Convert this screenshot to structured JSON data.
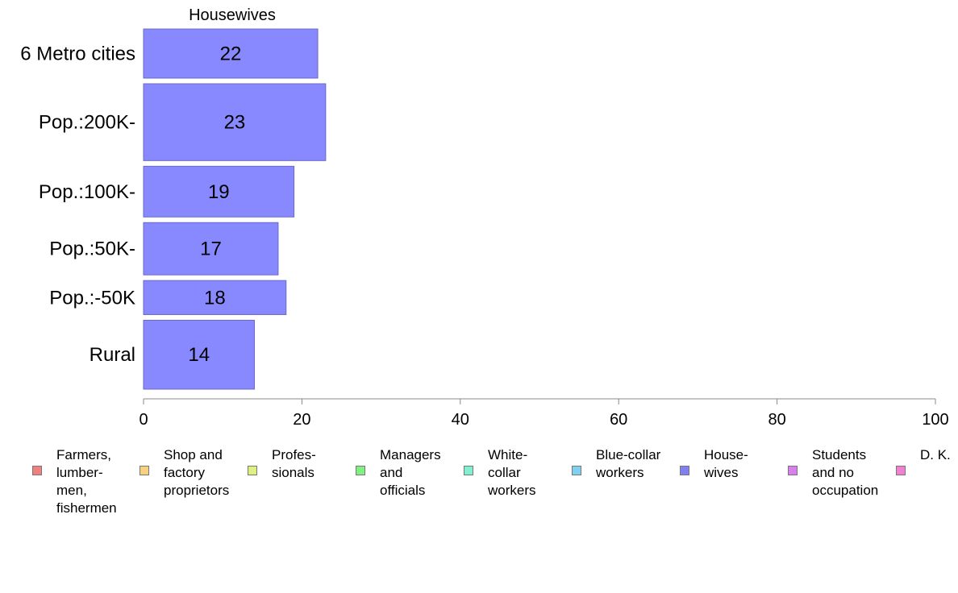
{
  "chart_data": {
    "type": "bar",
    "orientation": "horizontal",
    "title": "Housewives",
    "categories": [
      "6 Metro cities",
      "Pop.:200K-",
      "Pop.:100K-",
      "Pop.:50K-",
      "Pop.:-50K",
      "Rural"
    ],
    "series": [
      {
        "name": "House-\nwives",
        "values": [
          22,
          23,
          19,
          17,
          18,
          14
        ],
        "color": "#8888ff"
      }
    ],
    "value_labels": [
      "22",
      "23",
      "19",
      "17",
      "18",
      "14"
    ],
    "xlim": [
      0,
      100
    ],
    "xticks": [
      0,
      20,
      40,
      60,
      80,
      100
    ],
    "xtick_labels": [
      "0",
      "20",
      "40",
      "60",
      "80",
      "100"
    ],
    "bar_weights": [
      62,
      97,
      64,
      66,
      43,
      87
    ],
    "grid": false,
    "legend_position": "bottom"
  },
  "legend": [
    {
      "label": "Farmers,\nlumber-\nmen,\nfishermen",
      "color": "#f08080"
    },
    {
      "label": "Shop and\nfactory\nproprietors",
      "color": "#f8d080"
    },
    {
      "label": "Profes-\nsionals",
      "color": "#e0f080"
    },
    {
      "label": "Managers\nand\nofficials",
      "color": "#80f080"
    },
    {
      "label": "White-\ncollar\nworkers",
      "color": "#80f0d0"
    },
    {
      "label": "Blue-collar\nworkers",
      "color": "#80d0f0"
    },
    {
      "label": "House-\nwives",
      "color": "#8080f0"
    },
    {
      "label": "Students\nand no\noccupation",
      "color": "#d880f0"
    },
    {
      "label": "D. K.",
      "color": "#f080d0"
    }
  ]
}
